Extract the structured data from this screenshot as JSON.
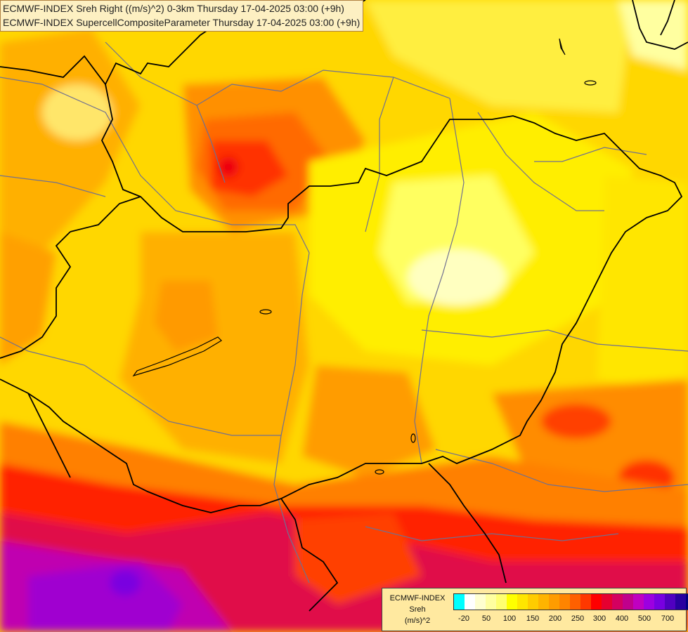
{
  "titles": {
    "line1": "ECMWF-INDEX Sreh Right ((m/s)^2) 0-3km Thursday 17-04-2025 03:00 (+9h)",
    "line2": "ECMWF-INDEX SupercellCompositeParameter Thursday 17-04-2025 03:00 (+9h)"
  },
  "legend": {
    "title_line1": "ECMWF-INDEX",
    "title_line2": "Sreh",
    "title_line3": "(m/s)^2",
    "colors": [
      "#00ffff",
      "#ffffff",
      "#ffffd0",
      "#ffffa0",
      "#ffff70",
      "#ffff00",
      "#ffe600",
      "#ffcc00",
      "#ffb400",
      "#ff9c00",
      "#ff8400",
      "#ff6000",
      "#ff3800",
      "#ff0000",
      "#e60030",
      "#d40060",
      "#c0008c",
      "#c000c0",
      "#9c00e0",
      "#7800e0",
      "#5000c0",
      "#2800a0",
      "#000080"
    ],
    "ticks": [
      "-20",
      "50",
      "100",
      "150",
      "200",
      "250",
      "300",
      "400",
      "500",
      "700"
    ]
  },
  "palette": {
    "yellow": "#ffff00",
    "gold": "#ffd700",
    "orange": "#ffa500",
    "dark_orange": "#ff7f00",
    "red": "#ff2200",
    "crimson": "#e0104a",
    "magenta": "#c000c0",
    "purple": "#8000e0",
    "pale": "#ffffc0",
    "border": "#000000",
    "river": "#707090"
  }
}
